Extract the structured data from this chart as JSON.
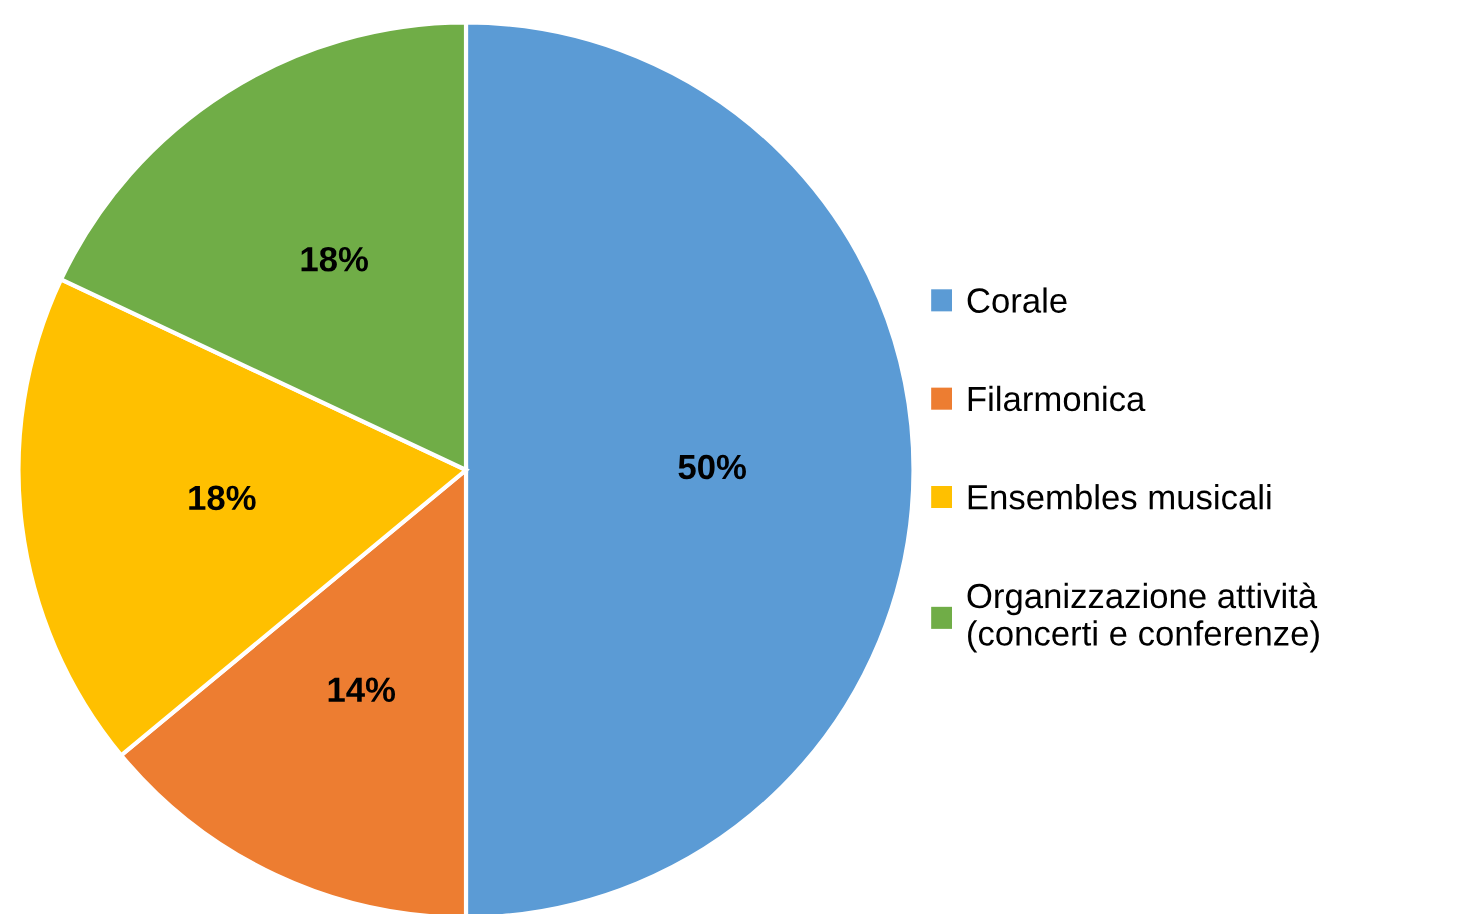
{
  "chart_data": {
    "type": "pie",
    "categories": [
      "Corale",
      "Filarmonica",
      "Ensembles musicali",
      "Organizzazione attività\n(concerti e conferenze)"
    ],
    "values": [
      50,
      14,
      18,
      18
    ],
    "colors": [
      "#5b9bd5",
      "#ed7d31",
      "#ffc000",
      "#70ad47"
    ],
    "value_labels": [
      "50%",
      "14%",
      "18%",
      "18%"
    ],
    "legend": "right"
  }
}
